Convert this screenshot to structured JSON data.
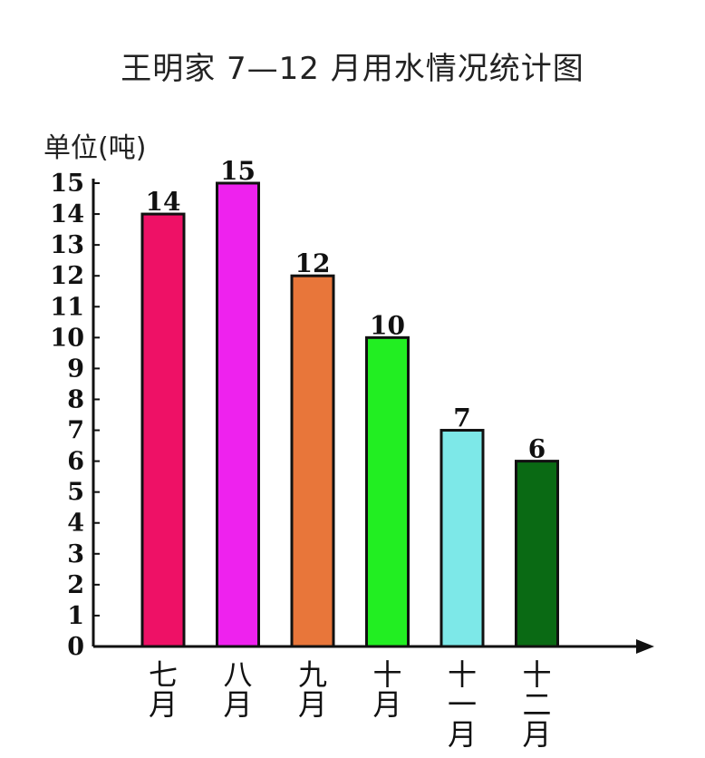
{
  "chart_data": {
    "type": "bar",
    "title": "王明家 7—12 月用水情况统计图",
    "ylabel": "单位(吨)",
    "xlabel": "",
    "ylim": [
      0,
      15
    ],
    "yticks": [
      "0",
      "1",
      "2",
      "3",
      "4",
      "5",
      "6",
      "7",
      "8",
      "9",
      "10",
      "11",
      "12",
      "13",
      "14",
      "15"
    ],
    "categories": [
      [
        "七",
        "月"
      ],
      [
        "八",
        "月"
      ],
      [
        "九",
        "月"
      ],
      [
        "十",
        "月"
      ],
      [
        "十",
        "一",
        "月"
      ],
      [
        "十",
        "二",
        "月"
      ]
    ],
    "values": [
      14,
      15,
      12,
      10,
      7,
      6
    ],
    "data_labels": [
      "14",
      "15",
      "12",
      "10",
      "7",
      "6"
    ],
    "colors": [
      "#ee1166",
      "#ee22ee",
      "#e8763a",
      "#22ee22",
      "#7de8e8",
      "#0a6a14"
    ],
    "grid": false,
    "legend": "none"
  }
}
